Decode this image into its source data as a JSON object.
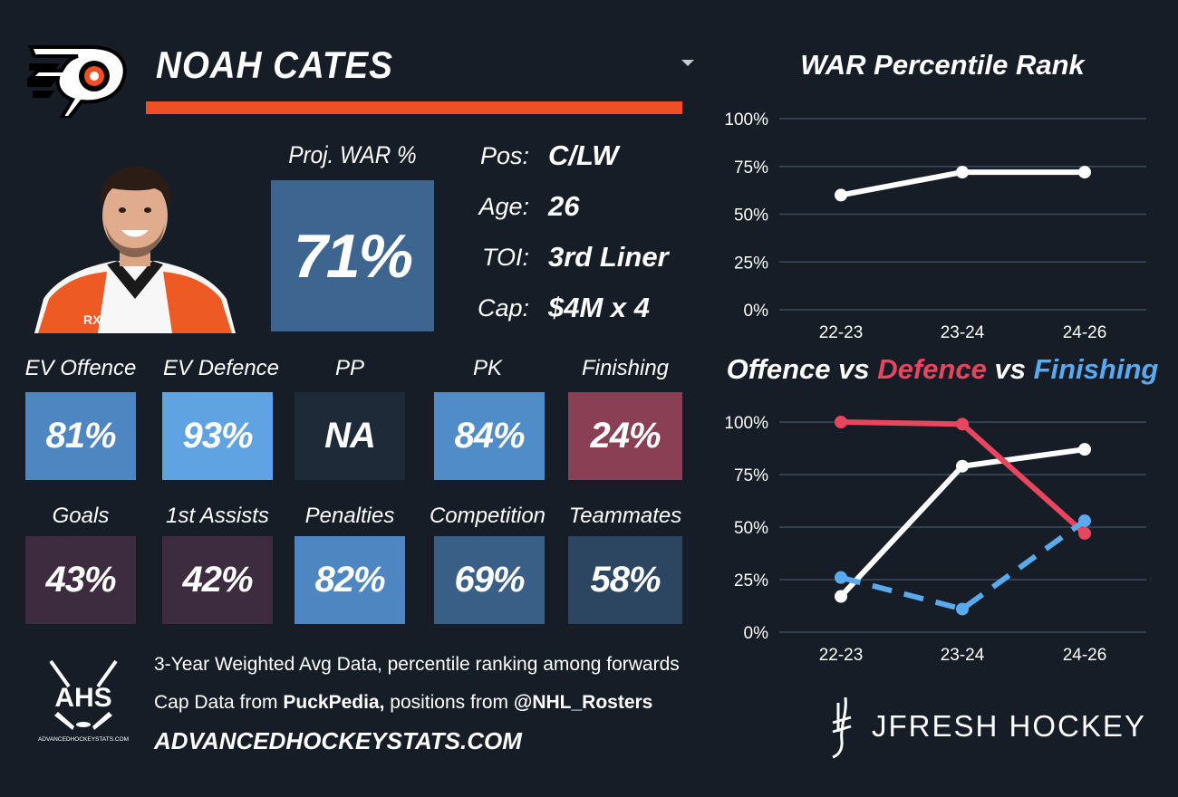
{
  "player": {
    "name": "NOAH CATES",
    "team_logo_icon": "flyers-logo-icon",
    "accent_color": "#f04e23"
  },
  "projection": {
    "label": "Proj. WAR %",
    "value": "71%"
  },
  "info": [
    {
      "label": "Pos:",
      "value": "C/LW"
    },
    {
      "label": "Age:",
      "value": "26"
    },
    {
      "label": "TOI:",
      "value": "3rd Liner"
    },
    {
      "label": "Cap:",
      "value": "$4M x 4"
    }
  ],
  "stats_row1": [
    {
      "label": "EV Offence",
      "value": "81%",
      "color": "#4d86c0"
    },
    {
      "label": "EV Defence",
      "value": "93%",
      "color": "#5fa3e3"
    },
    {
      "label": "PP",
      "value": "NA",
      "color": "#1f2a38"
    },
    {
      "label": "PK",
      "value": "84%",
      "color": "#4f8cc8"
    },
    {
      "label": "Finishing",
      "value": "24%",
      "color": "#8a3f55"
    }
  ],
  "stats_row2": [
    {
      "label": "Goals",
      "value": "43%",
      "color": "#3d2c40"
    },
    {
      "label": "1st Assists",
      "value": "42%",
      "color": "#3d2c40"
    },
    {
      "label": "Penalties",
      "value": "82%",
      "color": "#4d86c0"
    },
    {
      "label": "Competition",
      "value": "69%",
      "color": "#3a5f86"
    },
    {
      "label": "Teammates",
      "value": "58%",
      "color": "#2c4560"
    }
  ],
  "footer": {
    "line1": "3-Year Weighted Avg Data, percentile ranking among forwards",
    "line2_prefix": "Cap Data from ",
    "line2_source": "PuckPedia,",
    "line2_mid": " positions from ",
    "line2_handle": "@NHL_Rosters",
    "site": "ADVANCEDHOCKEYSTATS.COM",
    "ahs_text": "AHS",
    "ahs_small": "ADVANCEDHOCKEYSTATS.COM",
    "brand": "JFRESH HOCKEY"
  },
  "chart_data": [
    {
      "type": "line",
      "title": "WAR Percentile Rank",
      "categories": [
        "22-23",
        "23-24",
        "24-26"
      ],
      "ylim": [
        0,
        100
      ],
      "yticks": [
        "0%",
        "25%",
        "50%",
        "75%",
        "100%"
      ],
      "grid": true,
      "series": [
        {
          "values": [
            60,
            72,
            72
          ],
          "color": "#ffffff",
          "dashed": false
        }
      ]
    },
    {
      "type": "line",
      "title_parts": [
        {
          "text": "Offence",
          "color": "#ffffff"
        },
        {
          "text": " vs ",
          "color": "#ffffff"
        },
        {
          "text": "Defence",
          "color": "#e8455e"
        },
        {
          "text": " vs ",
          "color": "#ffffff"
        },
        {
          "text": "Finishing",
          "color": "#5aaaf0"
        }
      ],
      "categories": [
        "22-23",
        "23-24",
        "24-26"
      ],
      "ylim": [
        0,
        100
      ],
      "yticks": [
        "0%",
        "25%",
        "50%",
        "75%",
        "100%"
      ],
      "grid": true,
      "series": [
        {
          "name": "Offence",
          "values": [
            17,
            79,
            87
          ],
          "color": "#ffffff",
          "dashed": false
        },
        {
          "name": "Defence",
          "values": [
            100,
            99,
            47
          ],
          "color": "#e8455e",
          "dashed": false
        },
        {
          "name": "Finishing",
          "values": [
            26,
            11,
            53
          ],
          "color": "#5aaaf0",
          "dashed": true
        }
      ]
    }
  ]
}
